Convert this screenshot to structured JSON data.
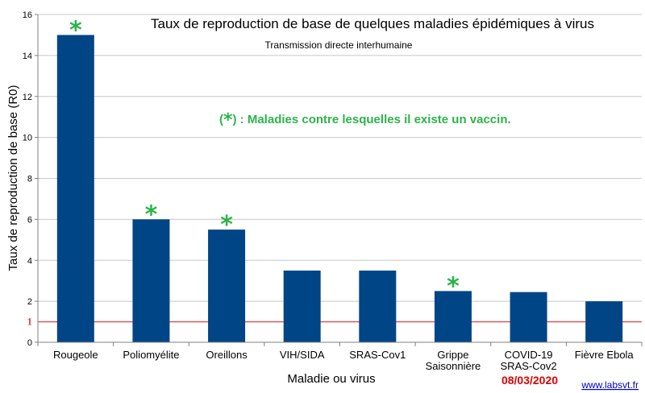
{
  "chart_data": {
    "type": "bar",
    "title": "Taux de reproduction de base de quelques maladies épidémiques à virus",
    "subtitle": "Transmission directe interhumaine",
    "xlabel": "Maladie ou virus",
    "ylabel": "Taux de reproduction de base (R0)",
    "ylim": [
      0,
      16
    ],
    "yticks": [
      0,
      2,
      4,
      6,
      8,
      10,
      12,
      14,
      16
    ],
    "grid": true,
    "categories": [
      [
        "Rougeole"
      ],
      [
        "Poliomyélite"
      ],
      [
        "Oreillons"
      ],
      [
        "VIH/SIDA"
      ],
      [
        "SRAS-Cov1"
      ],
      [
        "Grippe",
        "Saisonnière"
      ],
      [
        "COVID-19",
        "SRAS-Cov2"
      ],
      [
        "Fièvre Ebola"
      ]
    ],
    "values": [
      15,
      6,
      5.5,
      3.5,
      3.5,
      2.5,
      2.45,
      2
    ],
    "vaccine": [
      true,
      true,
      true,
      false,
      false,
      true,
      false,
      false
    ],
    "star_symbol": "*",
    "reference_line": {
      "value": 1,
      "label": "1",
      "color": "#e8474c"
    },
    "annotation": {
      "open": "(",
      "star": "*",
      "text": ") : Maladies contre lesquelles il existe un vaccin."
    },
    "date": "08/03/2020",
    "source": "www.labsvt.fr"
  },
  "colors": {
    "bar": "#004586",
    "star": "#2db34a",
    "note": "#2db34a",
    "grid": "#c8c8c8",
    "axis": "#808080",
    "date": "#e00000",
    "link": "#0000cc"
  }
}
